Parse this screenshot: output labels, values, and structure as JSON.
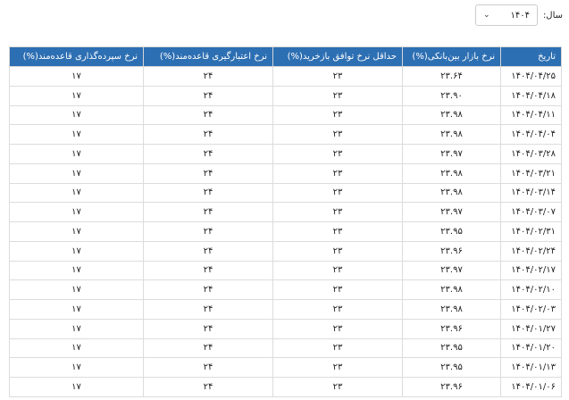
{
  "filter": {
    "label": "سال:",
    "value": "۱۴۰۴"
  },
  "table": {
    "columns": [
      "تاریخ",
      "نرخ بازار بین‌بانکی(%)",
      "حداقل نرخ توافق بازخرید(%)",
      "نرخ اعتبارگیری قاعده‌مند(%)",
      "نرخ سپرده‌گذاری قاعده‌مند(%)"
    ],
    "rows": [
      [
        "۱۴۰۴/۰۴/۲۵",
        "۲۳.۶۴",
        "۲۳",
        "۲۴",
        "۱۷"
      ],
      [
        "۱۴۰۴/۰۴/۱۸",
        "۲۳.۹۰",
        "۲۳",
        "۲۴",
        "۱۷"
      ],
      [
        "۱۴۰۴/۰۴/۱۱",
        "۲۳.۹۸",
        "۲۳",
        "۲۴",
        "۱۷"
      ],
      [
        "۱۴۰۴/۰۴/۰۴",
        "۲۳.۹۸",
        "۲۳",
        "۲۴",
        "۱۷"
      ],
      [
        "۱۴۰۴/۰۳/۲۸",
        "۲۳.۹۷",
        "۲۳",
        "۲۴",
        "۱۷"
      ],
      [
        "۱۴۰۴/۰۳/۲۱",
        "۲۳.۹۸",
        "۲۳",
        "۲۴",
        "۱۷"
      ],
      [
        "۱۴۰۴/۰۳/۱۴",
        "۲۳.۹۸",
        "۲۳",
        "۲۴",
        "۱۷"
      ],
      [
        "۱۴۰۴/۰۳/۰۷",
        "۲۳.۹۷",
        "۲۳",
        "۲۴",
        "۱۷"
      ],
      [
        "۱۴۰۴/۰۲/۳۱",
        "۲۳.۹۵",
        "۲۳",
        "۲۴",
        "۱۷"
      ],
      [
        "۱۴۰۴/۰۲/۲۴",
        "۲۳.۹۶",
        "۲۳",
        "۲۴",
        "۱۷"
      ],
      [
        "۱۴۰۴/۰۲/۱۷",
        "۲۳.۹۷",
        "۲۳",
        "۲۴",
        "۱۷"
      ],
      [
        "۱۴۰۴/۰۲/۱۰",
        "۲۳.۹۸",
        "۲۳",
        "۲۴",
        "۱۷"
      ],
      [
        "۱۴۰۴/۰۲/۰۳",
        "۲۳.۹۸",
        "۲۳",
        "۲۴",
        "۱۷"
      ],
      [
        "۱۴۰۴/۰۱/۲۷",
        "۲۳.۹۶",
        "۲۳",
        "۲۴",
        "۱۷"
      ],
      [
        "۱۴۰۴/۰۱/۲۰",
        "۲۳.۹۵",
        "۲۳",
        "۲۴",
        "۱۷"
      ],
      [
        "۱۴۰۴/۰۱/۱۳",
        "۲۳.۹۵",
        "۲۳",
        "۲۴",
        "۱۷"
      ],
      [
        "۱۴۰۴/۰۱/۰۶",
        "۲۳.۹۶",
        "۲۳",
        "۲۴",
        "۱۷"
      ]
    ]
  }
}
